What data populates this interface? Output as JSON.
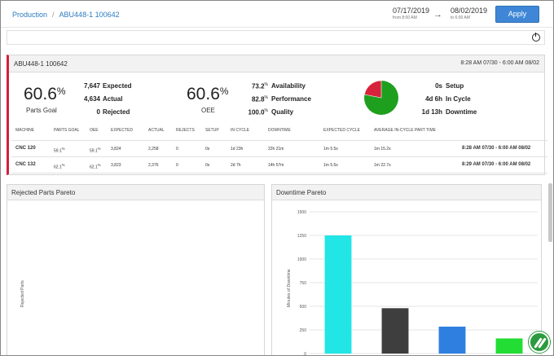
{
  "breadcrumb": {
    "root": "Production",
    "separator": "/",
    "current": "ABU448-1 100642"
  },
  "date_range": {
    "start": {
      "date": "07/17/2019",
      "sub": "from 8:00 AM"
    },
    "end": {
      "date": "08/02/2019",
      "sub": "to 6:00 AM"
    },
    "apply_label": "Apply"
  },
  "card": {
    "title": "ABU448-1 100642",
    "range": "8:28 AM 07/30 - 6:00 AM 08/02",
    "parts_goal": {
      "value": "60.6",
      "unit": "%",
      "label": "Parts Goal"
    },
    "counts": [
      {
        "value": "7,647",
        "label": "Expected"
      },
      {
        "value": "4,634",
        "label": "Actual"
      },
      {
        "value": "0",
        "label": "Rejected"
      }
    ],
    "oee": {
      "value": "60.6",
      "unit": "%",
      "label": "OEE"
    },
    "factors": [
      {
        "value": "73.2",
        "unit": "%",
        "label": "Availability"
      },
      {
        "value": "82.8",
        "unit": "%",
        "label": "Performance"
      },
      {
        "value": "100.0",
        "unit": "%",
        "label": "Quality"
      }
    ],
    "pie": {
      "in_cycle_fraction": 0.78,
      "downtime_fraction": 0.22,
      "colors": {
        "in_cycle": "#1e9f1e",
        "downtime": "#d8223b"
      }
    },
    "times": [
      {
        "value": "0s",
        "label": "Setup"
      },
      {
        "value": "4d 6h",
        "label": "In Cycle"
      },
      {
        "value": "1d 13h",
        "label": "Downtime"
      }
    ]
  },
  "table": {
    "headers": [
      "MACHINE",
      "PARTS GOAL",
      "OEE",
      "EXPECTED",
      "ACTUAL",
      "REJECTS",
      "SETUP",
      "IN CYCLE",
      "DOWNTIME",
      "EXPECTED CYCLE",
      "AVERAGE IN-CYCLE PART TIME"
    ],
    "rows": [
      {
        "machine": "CNC 120",
        "parts_goal": "59.1",
        "oee": "59.1",
        "unit": "%",
        "expected": "3,824",
        "actual": "2,258",
        "rejects": "0",
        "setup": "0s",
        "in_cycle": "1d 23h",
        "downtime": "22h 21m",
        "expected_cycle": "1m 5.5s",
        "avg_part": "1m 15.2s",
        "range": "8:28 AM 07/30 - 6:00 AM 08/02"
      },
      {
        "machine": "CNC 132",
        "parts_goal": "62.1",
        "oee": "62.1",
        "unit": "%",
        "expected": "3,823",
        "actual": "2,376",
        "rejects": "0",
        "setup": "0s",
        "in_cycle": "2d 7h",
        "downtime": "14h 57m",
        "expected_cycle": "1m 5.5s",
        "avg_part": "1m 22.7s",
        "range": "8:29 AM 07/30 - 6:00 AM 08/02"
      }
    ]
  },
  "rejected_pareto": {
    "title": "Rejected Parts Pareto",
    "ylabel": "Rejected Parts"
  },
  "downtime_pareto": {
    "title": "Downtime Pareto"
  },
  "chart_data": {
    "type": "bar",
    "title": "Downtime Pareto",
    "ylabel": "Minutes of Downtime",
    "xlabel": "",
    "ylim": [
      0,
      1500
    ],
    "yticks": [
      0,
      250,
      500,
      750,
      1000,
      1250,
      1500
    ],
    "tick_labels": [
      "0",
      "250",
      "500",
      "750",
      "1000",
      "1250",
      "1500"
    ],
    "values": [
      1250,
      480,
      285,
      160
    ],
    "colors": [
      "#22e6e6",
      "#3e3e3e",
      "#2f7fe0",
      "#22dd33"
    ],
    "grid": true
  }
}
